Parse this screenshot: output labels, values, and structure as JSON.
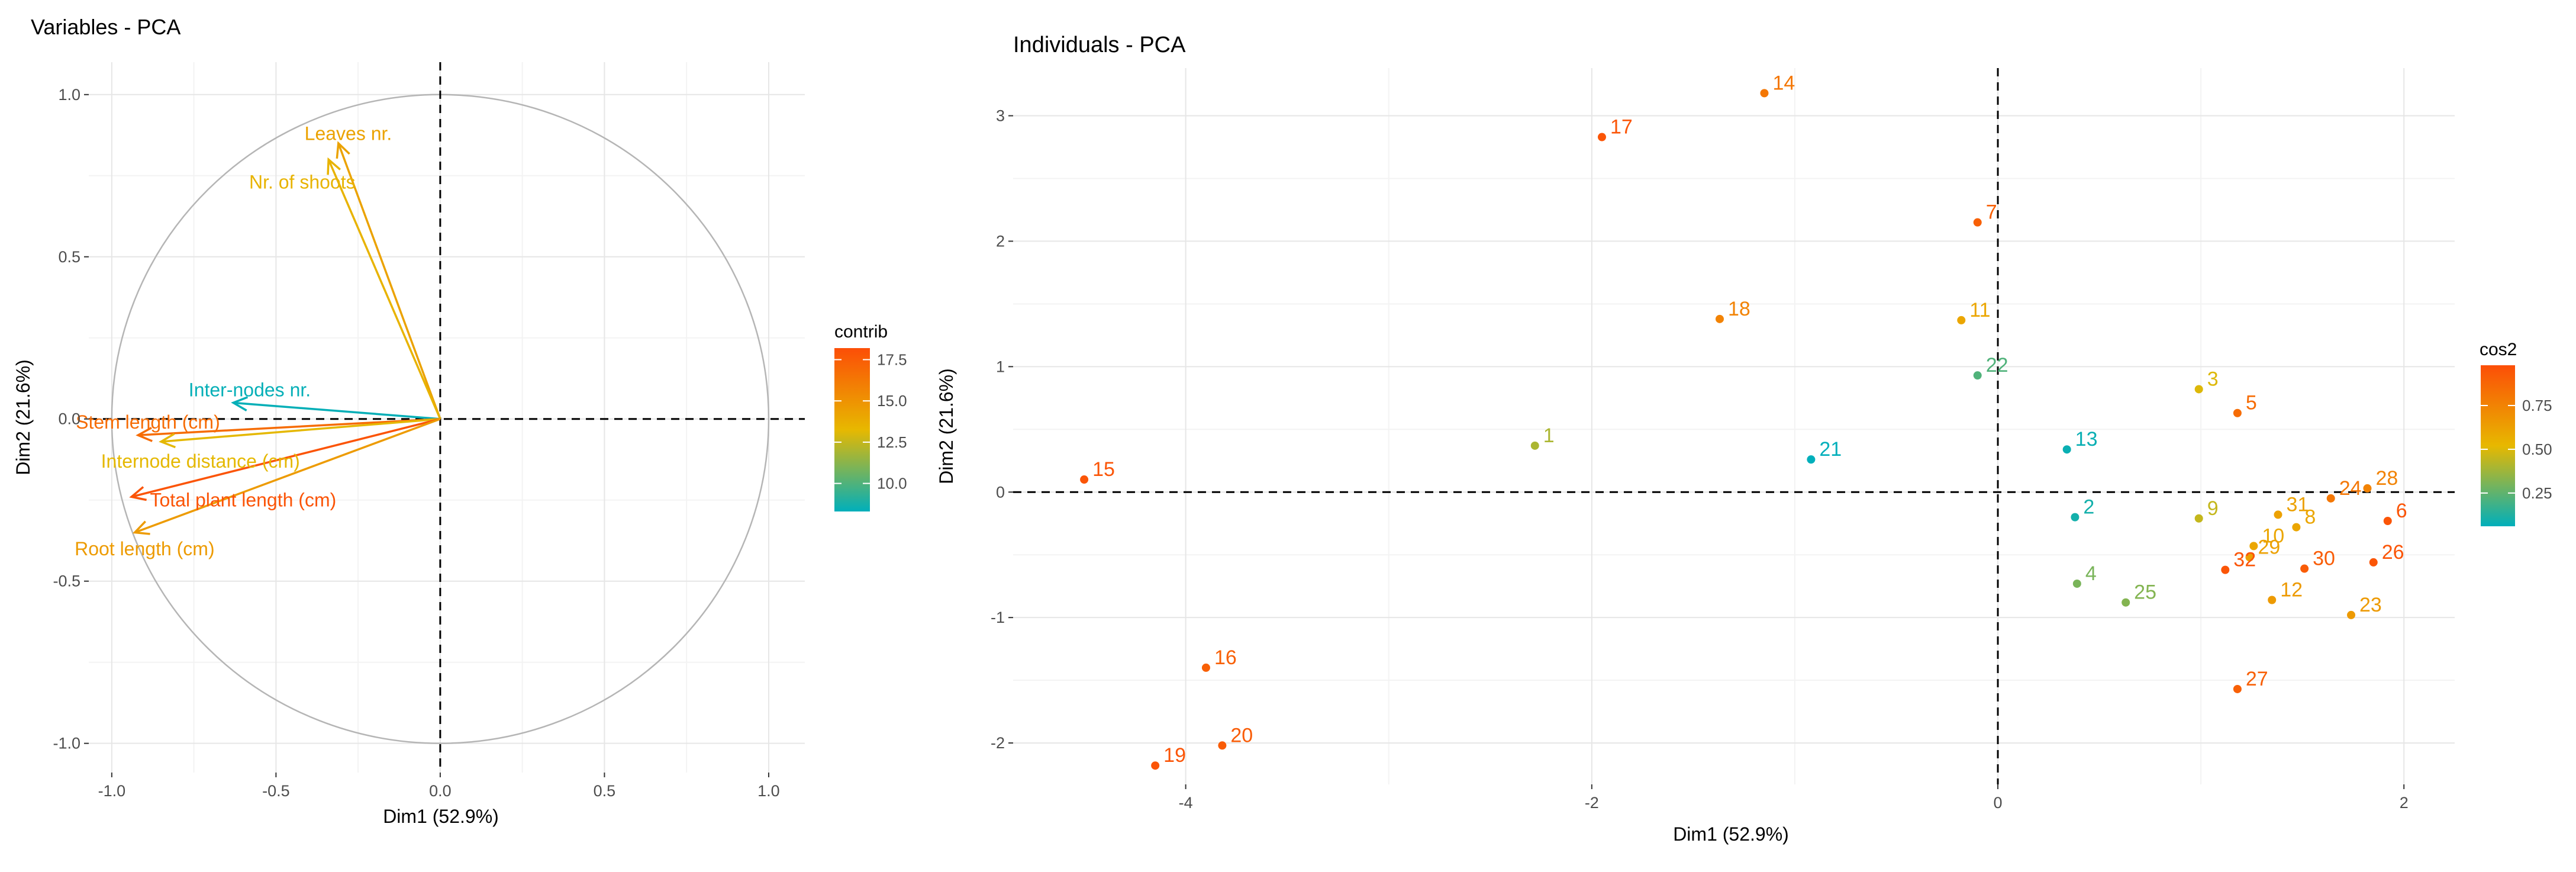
{
  "chart_data": [
    {
      "type": "pca-variables",
      "title": "Variables - PCA",
      "xlabel": "Dim1 (52.9%)",
      "ylabel": "Dim2 (21.6%)",
      "xlim": [
        -1.07,
        1.11
      ],
      "ylim": [
        -1.09,
        1.1
      ],
      "xticks": [
        -1.0,
        -0.5,
        0.0,
        0.5,
        1.0
      ],
      "xtick_labels": [
        "-1.0",
        "-0.5",
        "0.0",
        "0.5",
        "1.0"
      ],
      "yticks": [
        -1.0,
        -0.5,
        0.0,
        0.5,
        1.0
      ],
      "ytick_labels": [
        "-1.0",
        "-0.5",
        "0.0",
        "0.5",
        "1.0"
      ],
      "grid": true,
      "legend": {
        "title": "contrib",
        "position": "right",
        "ticks": [
          10.0,
          12.5,
          15.0,
          17.5
        ],
        "tick_labels": [
          "10.0",
          "12.5",
          "15.0",
          "17.5"
        ],
        "range": [
          8.3,
          18.2
        ],
        "colors": [
          "#00AFBB",
          "#E7B800",
          "#FC4E07"
        ]
      },
      "variables": [
        {
          "name": "Leaves nr.",
          "x": -0.31,
          "y": 0.85,
          "contrib": 14.3,
          "label_x": -0.28,
          "label_y": 0.88
        },
        {
          "name": "Nr. of shoots",
          "x": -0.34,
          "y": 0.8,
          "contrib": 13.5,
          "label_x": -0.42,
          "label_y": 0.73
        },
        {
          "name": "Inter-nodes nr.",
          "x": -0.63,
          "y": 0.05,
          "contrib": 8.4,
          "label_x": -0.58,
          "label_y": 0.09
        },
        {
          "name": "Stem length (cm)",
          "x": -0.92,
          "y": -0.05,
          "contrib": 16.8,
          "label_x": -0.89,
          "label_y": -0.01
        },
        {
          "name": "Internode distance (cm)",
          "x": -0.85,
          "y": -0.07,
          "contrib": 13.2,
          "label_x": -0.73,
          "label_y": -0.13
        },
        {
          "name": "Total plant length (cm)",
          "x": -0.94,
          "y": -0.24,
          "contrib": 17.9,
          "label_x": -0.6,
          "label_y": -0.25
        },
        {
          "name": "Root length (cm)",
          "x": -0.93,
          "y": -0.35,
          "contrib": 14.6,
          "label_x": -0.9,
          "label_y": -0.4
        }
      ]
    },
    {
      "type": "pca-individuals",
      "title": "Individuals - PCA",
      "xlabel": "Dim1 (52.9%)",
      "ylabel": "Dim2 (21.6%)",
      "xlim": [
        -4.85,
        2.25
      ],
      "ylim": [
        -2.33,
        3.38
      ],
      "xticks": [
        -4,
        -2,
        0,
        2
      ],
      "xtick_labels": [
        "-4",
        "-2",
        "0",
        "2"
      ],
      "yticks": [
        -2,
        -1,
        0,
        1,
        2,
        3
      ],
      "ytick_labels": [
        "-2",
        "-1",
        "0",
        "1",
        "2",
        "3"
      ],
      "grid": true,
      "legend": {
        "title": "cos2",
        "position": "right",
        "ticks": [
          0.25,
          0.5,
          0.75
        ],
        "tick_labels": [
          "0.25",
          "0.50",
          "0.75"
        ],
        "range": [
          0.06,
          0.98
        ],
        "colors": [
          "#00AFBB",
          "#E7B800",
          "#FC4E07"
        ]
      },
      "points": [
        {
          "label": "1",
          "x": -2.28,
          "y": 0.37,
          "cos2": 0.4
        },
        {
          "label": "2",
          "x": 0.38,
          "y": -0.2,
          "cos2": 0.1
        },
        {
          "label": "3",
          "x": 0.99,
          "y": 0.82,
          "cos2": 0.5
        },
        {
          "label": "4",
          "x": 0.39,
          "y": -0.73,
          "cos2": 0.3
        },
        {
          "label": "5",
          "x": 1.18,
          "y": 0.63,
          "cos2": 0.85
        },
        {
          "label": "6",
          "x": 1.92,
          "y": -0.23,
          "cos2": 0.95
        },
        {
          "label": "7",
          "x": -0.1,
          "y": 2.15,
          "cos2": 0.9
        },
        {
          "label": "8",
          "x": 1.47,
          "y": -0.28,
          "cos2": 0.6
        },
        {
          "label": "9",
          "x": 0.99,
          "y": -0.21,
          "cos2": 0.45
        },
        {
          "label": "10",
          "x": 1.26,
          "y": -0.43,
          "cos2": 0.6
        },
        {
          "label": "11",
          "x": -0.18,
          "y": 1.37,
          "cos2": 0.6
        },
        {
          "label": "12",
          "x": 1.35,
          "y": -0.86,
          "cos2": 0.65
        },
        {
          "label": "13",
          "x": 0.34,
          "y": 0.34,
          "cos2": 0.08
        },
        {
          "label": "14",
          "x": -1.15,
          "y": 3.18,
          "cos2": 0.8
        },
        {
          "label": "15",
          "x": -4.5,
          "y": 0.1,
          "cos2": 0.95
        },
        {
          "label": "16",
          "x": -3.9,
          "y": -1.4,
          "cos2": 0.9
        },
        {
          "label": "17",
          "x": -1.95,
          "y": 2.83,
          "cos2": 0.95
        },
        {
          "label": "18",
          "x": -1.37,
          "y": 1.38,
          "cos2": 0.75
        },
        {
          "label": "19",
          "x": -4.15,
          "y": -2.18,
          "cos2": 0.95
        },
        {
          "label": "20",
          "x": -3.82,
          "y": -2.02,
          "cos2": 0.92
        },
        {
          "label": "21",
          "x": -0.92,
          "y": 0.26,
          "cos2": 0.06
        },
        {
          "label": "22",
          "x": -0.1,
          "y": 0.93,
          "cos2": 0.22
        },
        {
          "label": "23",
          "x": 1.74,
          "y": -0.98,
          "cos2": 0.65
        },
        {
          "label": "24",
          "x": 1.64,
          "y": -0.05,
          "cos2": 0.8
        },
        {
          "label": "25",
          "x": 0.63,
          "y": -0.88,
          "cos2": 0.32
        },
        {
          "label": "26",
          "x": 1.85,
          "y": -0.56,
          "cos2": 0.95
        },
        {
          "label": "27",
          "x": 1.18,
          "y": -1.57,
          "cos2": 0.9
        },
        {
          "label": "28",
          "x": 1.82,
          "y": 0.03,
          "cos2": 0.75
        },
        {
          "label": "29",
          "x": 1.24,
          "y": -0.52,
          "cos2": 0.62
        },
        {
          "label": "30",
          "x": 1.51,
          "y": -0.61,
          "cos2": 0.92
        },
        {
          "label": "31",
          "x": 1.38,
          "y": -0.18,
          "cos2": 0.62
        },
        {
          "label": "32",
          "x": 1.12,
          "y": -0.62,
          "cos2": 0.95
        }
      ]
    }
  ]
}
